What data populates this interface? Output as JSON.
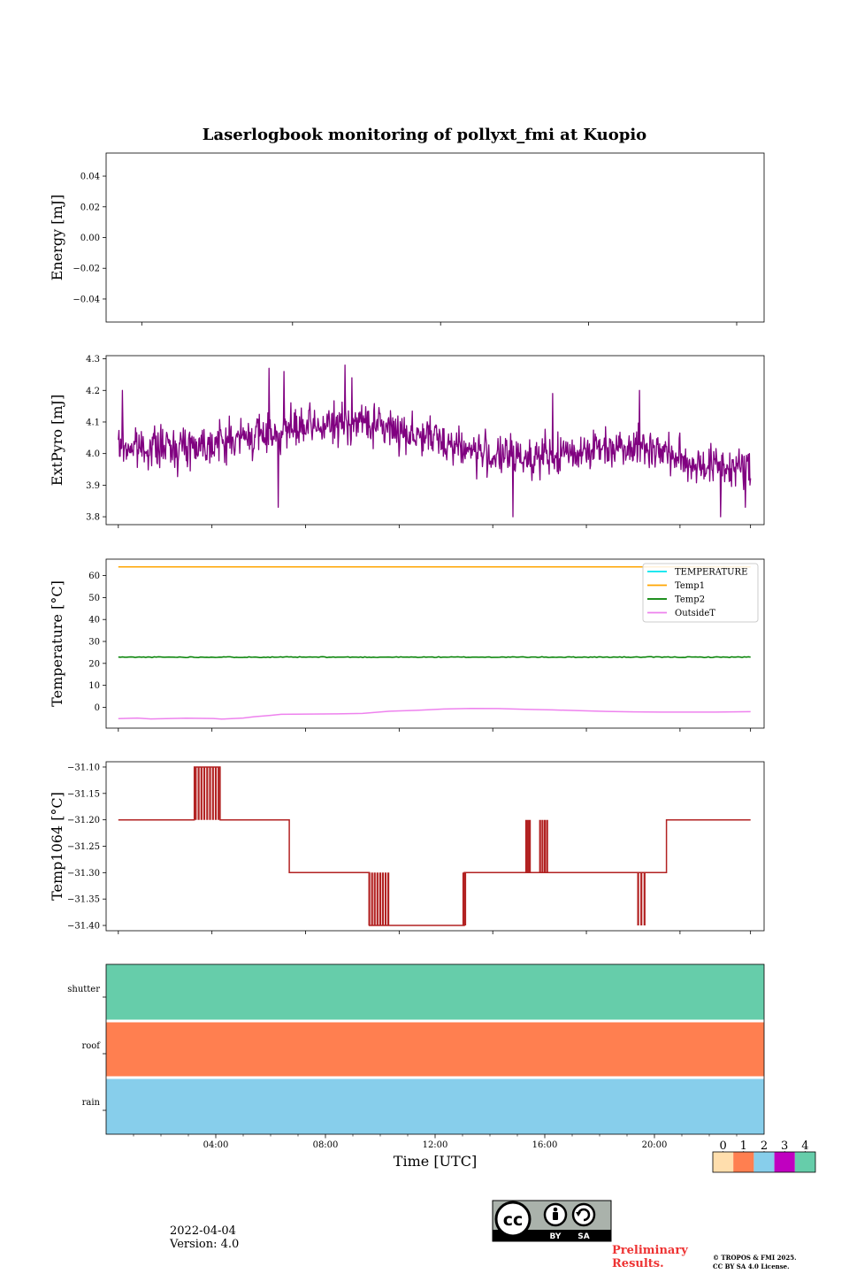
{
  "figure": {
    "title": "Laserlogbook monitoring of pollyxt_fmi at Kuopio",
    "date": "2022-04-04",
    "version": "Version: 4.0",
    "preliminary_line1": "Preliminary",
    "preliminary_line2": "Results.",
    "copyright_line1": "© TROPOS & FMI 2025.",
    "copyright_line2": "CC BY SA 4.0 License.",
    "license_badge": {
      "text_cc": "cc",
      "text_by": "BY",
      "text_sa": "SA",
      "icon": "cc-by-sa-icon"
    }
  },
  "colors": {
    "extpyro": "#800080",
    "temperature": "#00e5ee",
    "temp1": "#ffa500",
    "temp2": "#008000",
    "outsideT": "#ee82ee",
    "temp1064": "#b22222",
    "status": [
      "#ffdead",
      "#ff7f50",
      "#87ceeb",
      "#c000c0",
      "#66cdaa"
    ]
  },
  "chart_data": [
    {
      "type": "line",
      "panel": "energy",
      "ylabel": "Energy [mJ]",
      "ylim": [
        -0.055,
        0.055
      ],
      "yticks": [
        -0.04,
        -0.02,
        0.0,
        0.02,
        0.04
      ],
      "ytick_labels": [
        "−0.04",
        "−0.02",
        "0.00",
        "0.02",
        "0.04"
      ],
      "xlim_hours": [
        0,
        24
      ],
      "series": []
    },
    {
      "type": "line",
      "panel": "extpyro",
      "ylabel": "ExtPyro [mJ]",
      "ylim": [
        3.775,
        4.31
      ],
      "yticks": [
        3.8,
        3.9,
        4.0,
        4.1,
        4.2,
        4.3
      ],
      "ytick_labels": [
        "3.8",
        "3.9",
        "4.0",
        "4.1",
        "4.2",
        "4.3"
      ],
      "xlim_hours": [
        -0.45,
        23.8
      ],
      "series": [
        {
          "name": "ExtPyro",
          "x_start": 0.0,
          "x_end": 23.3,
          "n_points": 1100,
          "trend_x": [
            0,
            2,
            4,
            6,
            8,
            9,
            11,
            12,
            13,
            14,
            16,
            17,
            19,
            20,
            21,
            23.3
          ],
          "trend_y": [
            4.02,
            4.02,
            4.04,
            4.07,
            4.09,
            4.1,
            4.06,
            4.04,
            4.01,
            3.99,
            3.99,
            4.01,
            4.03,
            4.01,
            3.97,
            3.95
          ],
          "noise_std": 0.045,
          "spikes": [
            [
              0.15,
              4.2
            ],
            [
              5.55,
              4.27
            ],
            [
              5.9,
              3.83
            ],
            [
              6.1,
              4.26
            ],
            [
              8.35,
              4.28
            ],
            [
              8.6,
              4.24
            ],
            [
              14.55,
              3.8
            ],
            [
              16.0,
              4.19
            ],
            [
              19.2,
              4.2
            ],
            [
              22.2,
              3.8
            ],
            [
              23.1,
              3.83
            ]
          ]
        }
      ]
    },
    {
      "type": "line",
      "panel": "temperature",
      "ylabel": "Temperature [°C]",
      "ylim": [
        -9.5,
        67.5
      ],
      "yticks": [
        0,
        10,
        20,
        30,
        40,
        50,
        60
      ],
      "ytick_labels": [
        "0",
        "10",
        "20",
        "30",
        "40",
        "50",
        "60"
      ],
      "xlim_hours": [
        -0.45,
        23.8
      ],
      "legend": [
        "TEMPERATURE",
        "Temp1",
        "Temp2",
        "OutsideT"
      ],
      "legend_position": "top-right",
      "series": [
        {
          "name": "TEMPERATURE",
          "x": [],
          "y": []
        },
        {
          "name": "Temp1",
          "x": [
            0,
            23.3
          ],
          "y": [
            64,
            64
          ]
        },
        {
          "name": "Temp2",
          "x": [
            0,
            4,
            8,
            12,
            16,
            20,
            23.3
          ],
          "y": [
            23,
            22.8,
            22.8,
            22.8,
            22.9,
            22.8,
            23
          ]
        },
        {
          "name": "OutsideT",
          "x": [
            0,
            0.7,
            1.2,
            2.5,
            3.5,
            3.8,
            4.6,
            5,
            5.6,
            6,
            7,
            8,
            9,
            10,
            11,
            12,
            13,
            14,
            15,
            16,
            17,
            18,
            19,
            20,
            21,
            22,
            23.3
          ],
          "y": [
            -5.2,
            -4.9,
            -5.3,
            -5.0,
            -5.1,
            -5.4,
            -4.9,
            -4.3,
            -3.7,
            -3.2,
            -3.1,
            -3.0,
            -2.8,
            -1.8,
            -1.4,
            -0.8,
            -0.5,
            -0.6,
            -0.9,
            -1.2,
            -1.5,
            -1.9,
            -2.1,
            -2.2,
            -2.2,
            -2.2,
            -2.0
          ]
        }
      ]
    },
    {
      "type": "line",
      "panel": "temp1064",
      "ylabel": "Temp1064 [°C]",
      "ylim": [
        -31.41,
        -31.09
      ],
      "yticks": [
        -31.4,
        -31.35,
        -31.3,
        -31.25,
        -31.2,
        -31.15,
        -31.1
      ],
      "ytick_labels": [
        "−31.40",
        "−31.35",
        "−31.30",
        "−31.25",
        "−31.20",
        "−31.15",
        "−31.10"
      ],
      "xlim_hours": [
        -0.45,
        23.8
      ],
      "series": [
        {
          "name": "Temp1064",
          "segments": [
            [
              0.0,
              2.8,
              -31.2
            ],
            [
              2.8,
              3.75,
              -31.1
            ],
            [
              3.75,
              6.3,
              -31.2
            ],
            [
              6.3,
              9.25,
              -31.3
            ],
            [
              9.25,
              10.0,
              -31.4
            ],
            [
              10.0,
              12.75,
              -31.4
            ],
            [
              12.75,
              16.0,
              -31.3
            ],
            [
              16.0,
              20.2,
              -31.3
            ],
            [
              20.2,
              23.3,
              -31.2
            ]
          ],
          "flicker_bands": [
            {
              "from": 2.8,
              "to": 3.75,
              "base": -31.1,
              "alt": -31.2,
              "count": 9
            },
            {
              "from": 9.2,
              "to": 10.0,
              "base": -31.3,
              "alt": -31.4,
              "count": 8
            },
            {
              "from": 12.7,
              "to": 12.8,
              "base": -31.4,
              "alt": -31.3,
              "count": 3
            },
            {
              "from": 15.0,
              "to": 15.2,
              "base": -31.3,
              "alt": -31.2,
              "count": 3
            },
            {
              "from": 15.5,
              "to": 15.85,
              "base": -31.3,
              "alt": -31.2,
              "count": 4
            },
            {
              "from": 19.1,
              "to": 19.45,
              "base": -31.3,
              "alt": -31.4,
              "count": 3
            }
          ]
        }
      ]
    },
    {
      "type": "heatmap",
      "panel": "status",
      "rows": [
        "shutter",
        "roof",
        "rain"
      ],
      "row_values": [
        4,
        1,
        2
      ],
      "xlim_hours": [
        0,
        24
      ],
      "xticks_hours": [
        4,
        8,
        12,
        16,
        20
      ],
      "xtick_labels": [
        "04:00",
        "08:00",
        "12:00",
        "16:00",
        "20:00"
      ],
      "xlabel": "Time [UTC]",
      "colorbar_labels": [
        "0",
        "1",
        "2",
        "3",
        "4"
      ]
    }
  ]
}
